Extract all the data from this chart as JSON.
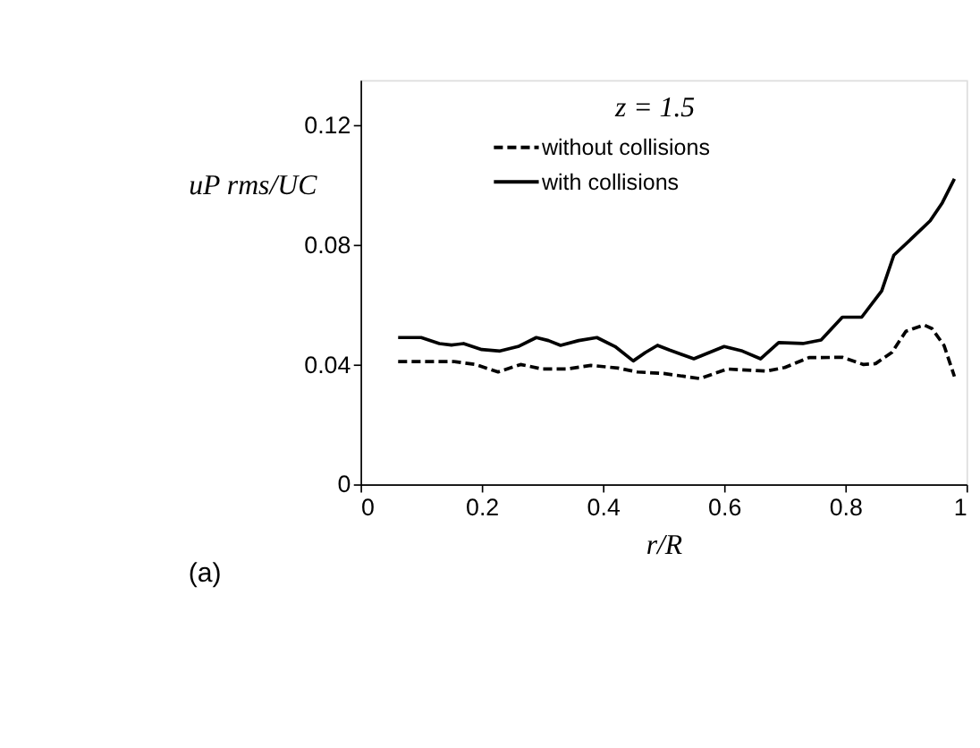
{
  "chart_data": {
    "type": "line",
    "xlabel": "r/R",
    "ylabel": "uP rms/UC",
    "annotations": [
      "z = 1.5",
      "(a)"
    ],
    "xlim": [
      0,
      1
    ],
    "xticks": [
      0,
      0.2,
      0.4,
      0.6,
      0.8,
      1
    ],
    "ylim": [
      0,
      0.135
    ],
    "yticks": [
      0,
      0.04,
      0.08,
      0.12
    ],
    "grid": false,
    "legend": "top",
    "marker": "none",
    "series": [
      {
        "name": "without collisions",
        "color": "#000000",
        "line_style": "dashed",
        "x": [
          0.062,
          0.1,
          0.153,
          0.19,
          0.227,
          0.264,
          0.3,
          0.34,
          0.38,
          0.425,
          0.457,
          0.5,
          0.56,
          0.605,
          0.67,
          0.7,
          0.74,
          0.795,
          0.83,
          0.85,
          0.877,
          0.9,
          0.93,
          0.943,
          0.963,
          0.98
        ],
        "values": [
          0.041,
          0.041,
          0.041,
          0.04,
          0.0375,
          0.04,
          0.0385,
          0.0385,
          0.0397,
          0.0388,
          0.0375,
          0.037,
          0.0353,
          0.0385,
          0.0378,
          0.039,
          0.0423,
          0.0424,
          0.04,
          0.0403,
          0.0441,
          0.0511,
          0.0532,
          0.052,
          0.0463,
          0.036
        ]
      },
      {
        "name": "with collisions",
        "color": "#000000",
        "line_style": "solid",
        "x": [
          0.062,
          0.1,
          0.13,
          0.15,
          0.17,
          0.2,
          0.23,
          0.26,
          0.29,
          0.31,
          0.33,
          0.36,
          0.39,
          0.42,
          0.45,
          0.47,
          0.49,
          0.51,
          0.55,
          0.6,
          0.63,
          0.66,
          0.69,
          0.73,
          0.76,
          0.795,
          0.827,
          0.86,
          0.88,
          0.91,
          0.94,
          0.96,
          0.98
        ],
        "values": [
          0.049,
          0.049,
          0.047,
          0.0465,
          0.047,
          0.045,
          0.0445,
          0.046,
          0.049,
          0.048,
          0.0464,
          0.048,
          0.049,
          0.046,
          0.0412,
          0.044,
          0.0464,
          0.0448,
          0.0419,
          0.046,
          0.0445,
          0.0419,
          0.0473,
          0.047,
          0.0482,
          0.0558,
          0.0558,
          0.0646,
          0.0765,
          0.0822,
          0.088,
          0.094,
          0.102
        ]
      }
    ]
  }
}
